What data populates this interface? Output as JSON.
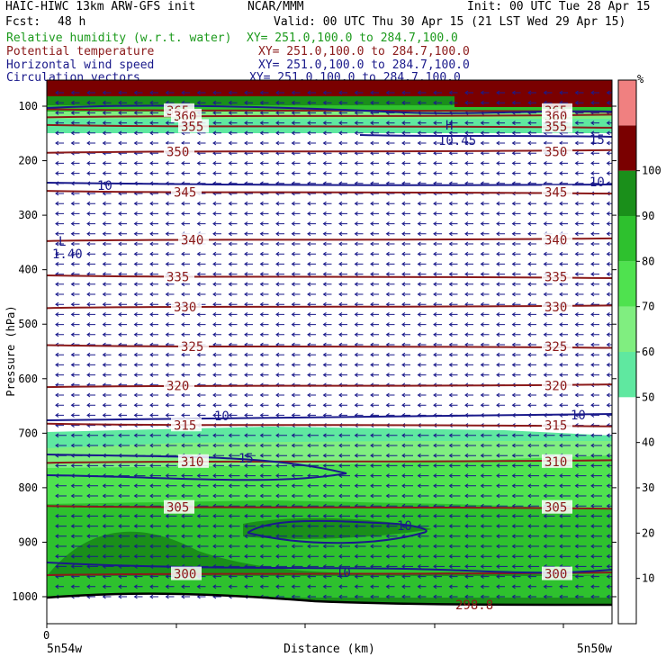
{
  "header": {
    "title_left": "HAIC-HIWC 13km ARW-GFS init",
    "title_mid": "NCAR/MMM",
    "init": "Init: 00 UTC Tue 28 Apr 15",
    "fcst_label": "Fcst:",
    "fcst_value": "48 h",
    "valid": "Valid: 00 UTC Thu 30 Apr 15 (21 LST Wed 29 Apr 15)"
  },
  "fields": [
    {
      "name": "Relative humidity (w.r.t. water)",
      "xy": "XY= 251.0,100.0 to 284.7,100.0",
      "color": "#1c9a1c"
    },
    {
      "name": "Potential temperature",
      "xy": "XY= 251.0,100.0 to 284.7,100.0",
      "color": "#8b1a1a"
    },
    {
      "name": "Horizontal wind speed",
      "xy": "XY= 251.0,100.0 to 284.7,100.0",
      "color": "#1a1a8b"
    },
    {
      "name": "Circulation vectors",
      "xy": "XY= 251.0,100.0 to 284.7,100.0",
      "color": "#1a1a8b"
    }
  ],
  "chart_data": {
    "type": "heatmap",
    "subtype": "vertical cross-section",
    "xlabel": "Distance (km)",
    "ylabel": "Pressure (hPa)",
    "x_tick_labels": {
      "origin": "0",
      "left": "5n54w",
      "right": "5n50w"
    },
    "y_ticks": [
      100,
      200,
      300,
      400,
      500,
      600,
      700,
      800,
      900,
      1000
    ],
    "ylim": [
      1000,
      100
    ],
    "colorbar": {
      "unit": "%",
      "ticks": [
        10,
        20,
        30,
        40,
        50,
        60,
        70,
        80,
        90,
        100
      ],
      "bins": [
        {
          "from": 0,
          "to": 50,
          "color": "#ffffff"
        },
        {
          "from": 50,
          "to": 60,
          "color": "#5fe8a0"
        },
        {
          "from": 60,
          "to": 70,
          "color": "#80ee80"
        },
        {
          "from": 70,
          "to": 80,
          "color": "#4fe24f"
        },
        {
          "from": 80,
          "to": 90,
          "color": "#2ec12e"
        },
        {
          "from": 90,
          "to": 100,
          "color": "#1a8f1a"
        },
        {
          "from": 100,
          "to": 110,
          "color": "#7a0000"
        },
        {
          "from": 110,
          "to": 120,
          "color": "#f08080"
        }
      ]
    },
    "theta_contours": [
      {
        "value": 365,
        "p": 108,
        "label": "365"
      },
      {
        "value": 360,
        "p": 118,
        "label": "360"
      },
      {
        "value": 355,
        "p": 137,
        "label": "355"
      },
      {
        "value": 350,
        "p": 183,
        "label": "350"
      },
      {
        "value": 345,
        "p": 258,
        "label": "345"
      },
      {
        "value": 340,
        "p": 345,
        "label": "340"
      },
      {
        "value": 335,
        "p": 413,
        "label": "335"
      },
      {
        "value": 330,
        "p": 468,
        "label": "330"
      },
      {
        "value": 325,
        "p": 541,
        "label": "325"
      },
      {
        "value": 320,
        "p": 613,
        "label": "320"
      },
      {
        "value": 315,
        "p": 685,
        "label": "315"
      },
      {
        "value": 310,
        "p": 752,
        "label": "310"
      },
      {
        "value": 305,
        "p": 836,
        "label": "305"
      },
      {
        "value": 300,
        "p": 958,
        "label": "300"
      }
    ],
    "wind_speed_contours": [
      10,
      15
    ],
    "annotations": [
      "L",
      "1.40",
      "H",
      "10.45",
      "298.8"
    ]
  }
}
